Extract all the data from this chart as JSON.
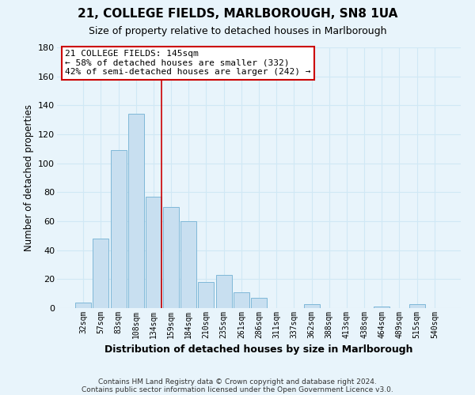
{
  "title": "21, COLLEGE FIELDS, MARLBOROUGH, SN8 1UA",
  "subtitle": "Size of property relative to detached houses in Marlborough",
  "xlabel": "Distribution of detached houses by size in Marlborough",
  "ylabel": "Number of detached properties",
  "bar_labels": [
    "32sqm",
    "57sqm",
    "83sqm",
    "108sqm",
    "134sqm",
    "159sqm",
    "184sqm",
    "210sqm",
    "235sqm",
    "261sqm",
    "286sqm",
    "311sqm",
    "337sqm",
    "362sqm",
    "388sqm",
    "413sqm",
    "438sqm",
    "464sqm",
    "489sqm",
    "515sqm",
    "540sqm"
  ],
  "bar_values": [
    4,
    48,
    109,
    134,
    77,
    70,
    60,
    18,
    23,
    11,
    7,
    0,
    0,
    3,
    0,
    0,
    0,
    1,
    0,
    3,
    0
  ],
  "bar_color": "#c8dff0",
  "bar_edge_color": "#7fb8d8",
  "highlight_index": 4,
  "highlight_line_color": "#cc0000",
  "ylim": [
    0,
    180
  ],
  "yticks": [
    0,
    20,
    40,
    60,
    80,
    100,
    120,
    140,
    160,
    180
  ],
  "annotation_text": "21 COLLEGE FIELDS: 145sqm\n← 58% of detached houses are smaller (332)\n42% of semi-detached houses are larger (242) →",
  "annotation_box_color": "#ffffff",
  "annotation_box_edge": "#cc0000",
  "footer_line1": "Contains HM Land Registry data © Crown copyright and database right 2024.",
  "footer_line2": "Contains public sector information licensed under the Open Government Licence v3.0.",
  "background_color": "#e8f4fb",
  "grid_color": "#d0e8f5",
  "title_fontsize": 11,
  "subtitle_fontsize": 9
}
